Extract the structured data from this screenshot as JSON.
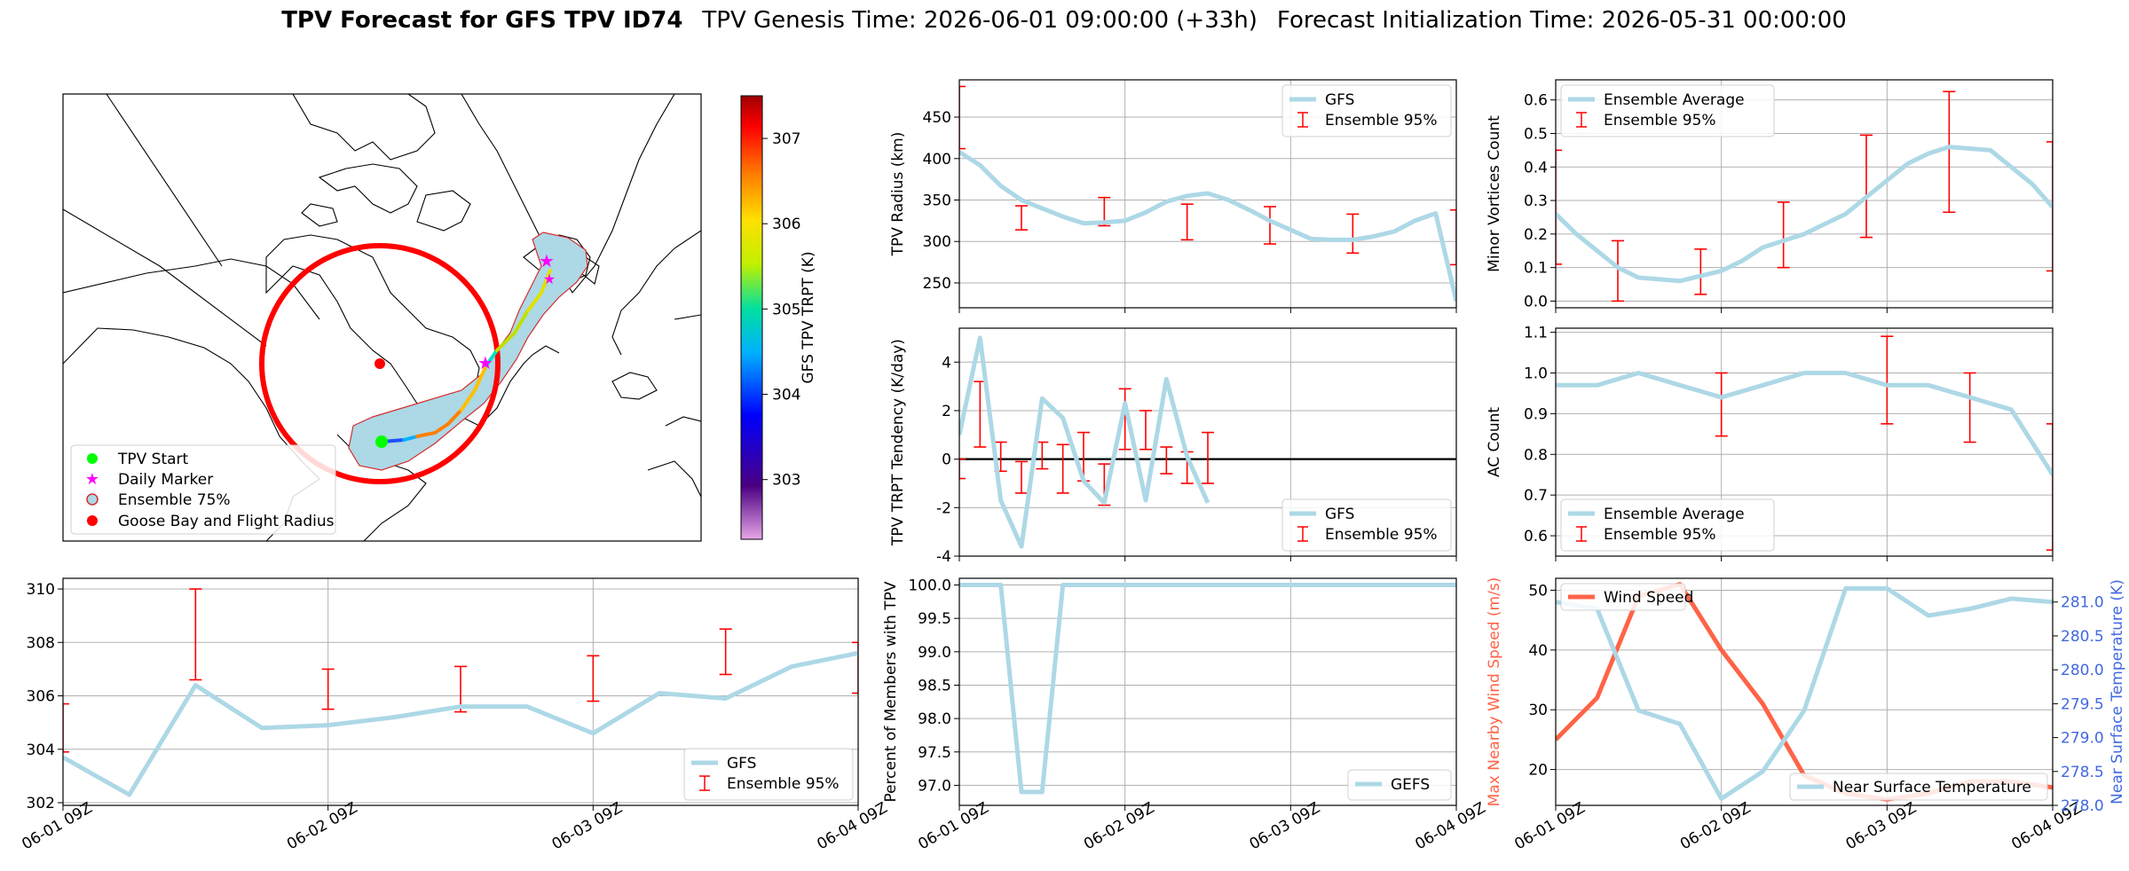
{
  "title": {
    "bold": "TPV Forecast for GFS TPV ID74",
    "genesis": "TPV Genesis Time: 2026-06-01 09:00:00 (+33h)",
    "init": "Forecast Initialization Time: 2026-05-31 00:00:00"
  },
  "colors": {
    "gfs_line": "#add8e6",
    "errorbar": "#ff0000",
    "wind": "#ff6347",
    "temp_axis": "#4169e1",
    "map_circle": "#ff0000",
    "ensemble_fill": "#add8e6"
  },
  "map": {
    "legend": [
      "TPV Start",
      "Daily Marker",
      "Ensemble 75%",
      "Goose Bay and Flight Radius"
    ],
    "colorbar": {
      "label": "GFS TPV TRPT (K)",
      "ticks": [
        "307",
        "306",
        "305",
        "304",
        "303"
      ],
      "range": [
        302.3,
        307.5
      ],
      "colormap": "gist_rainbow-like purple→red"
    }
  },
  "chart_data": [
    {
      "id": "radius",
      "type": "line",
      "ylabel": "TPV Radius (km)",
      "ylim": [
        220,
        495
      ],
      "yticks": [
        250,
        300,
        350,
        400,
        450
      ],
      "grid": true,
      "legend_position": "upper right",
      "legend": [
        "GFS",
        "Ensemble 95%"
      ],
      "x": [
        0,
        3,
        6,
        9,
        12,
        15,
        18,
        21,
        24,
        27,
        30,
        33,
        36,
        39,
        42,
        45,
        48,
        51,
        54,
        57,
        60,
        63,
        66,
        69,
        72
      ],
      "series": [
        {
          "name": "GFS",
          "values": [
            408,
            392,
            367,
            350,
            340,
            330,
            322,
            323,
            325,
            335,
            348,
            355,
            358,
            350,
            338,
            325,
            314,
            303,
            302,
            302,
            306,
            312,
            325,
            334,
            228
          ]
        }
      ],
      "errorbars": [
        {
          "x": 0,
          "low": 412,
          "high": 487
        },
        {
          "x": 9,
          "low": 314,
          "high": 343
        },
        {
          "x": 21,
          "low": 319,
          "high": 353
        },
        {
          "x": 33,
          "low": 302,
          "high": 345
        },
        {
          "x": 45,
          "low": 297,
          "high": 342
        },
        {
          "x": 57,
          "low": 286,
          "high": 333
        },
        {
          "x": 72,
          "low": 272,
          "high": 338
        }
      ]
    },
    {
      "id": "minor",
      "type": "line",
      "ylabel": "Minor Vortices Count",
      "ylim": [
        -0.02,
        0.66
      ],
      "yticks": [
        0.0,
        0.1,
        0.2,
        0.3,
        0.4,
        0.5,
        0.6
      ],
      "grid": true,
      "legend_position": "upper left",
      "legend": [
        "Ensemble Average",
        "Ensemble 95%"
      ],
      "x": [
        0,
        3,
        6,
        9,
        12,
        15,
        18,
        21,
        24,
        27,
        30,
        33,
        36,
        39,
        42,
        45,
        48,
        51,
        54,
        57,
        60,
        63,
        66,
        69,
        72
      ],
      "series": [
        {
          "name": "Ensemble Average",
          "values": [
            0.26,
            0.2,
            0.15,
            0.1,
            0.07,
            0.065,
            0.06,
            0.075,
            0.09,
            0.12,
            0.16,
            0.18,
            0.2,
            0.23,
            0.26,
            0.31,
            0.36,
            0.41,
            0.44,
            0.46,
            0.455,
            0.45,
            0.4,
            0.35,
            0.28
          ]
        }
      ],
      "errorbars": [
        {
          "x": 0,
          "low": 0.11,
          "high": 0.45
        },
        {
          "x": 9,
          "low": 0.0,
          "high": 0.18
        },
        {
          "x": 21,
          "low": 0.02,
          "high": 0.155
        },
        {
          "x": 33,
          "low": 0.1,
          "high": 0.295
        },
        {
          "x": 45,
          "low": 0.19,
          "high": 0.495
        },
        {
          "x": 57,
          "low": 0.265,
          "high": 0.625
        },
        {
          "x": 72,
          "low": 0.09,
          "high": 0.475
        }
      ]
    },
    {
      "id": "tendency",
      "type": "line",
      "ylabel": "TPV TRPT Tendency (K/day)",
      "ylim": [
        -4,
        5.4
      ],
      "yticks": [
        -4,
        -2,
        0,
        2,
        4
      ],
      "grid": true,
      "zero_line": true,
      "legend_position": "lower right",
      "legend": [
        "GFS",
        "Ensemble 95%"
      ],
      "x": [
        0,
        3,
        6,
        9,
        12,
        15,
        18,
        21,
        24,
        27,
        30,
        33,
        36,
        39,
        42,
        45,
        48,
        51,
        54,
        57,
        60,
        63,
        66,
        69,
        72
      ],
      "series": [
        {
          "name": "GFS",
          "values": [
            1.0,
            5.0,
            -1.7,
            -3.6,
            2.5,
            1.7,
            -0.9,
            -1.8,
            2.3,
            -1.7,
            3.3,
            0.1,
            -1.8,
            null,
            null,
            null,
            null,
            null,
            null,
            null,
            null,
            null,
            null,
            null,
            null
          ]
        }
      ],
      "errorbars": [
        {
          "x": 0,
          "low": -0.8,
          "high": 0.0
        },
        {
          "x": 3,
          "low": 0.5,
          "high": 3.2
        },
        {
          "x": 6,
          "low": -0.5,
          "high": 0.7
        },
        {
          "x": 9,
          "low": -1.4,
          "high": -0.1
        },
        {
          "x": 12,
          "low": -0.4,
          "high": 0.7
        },
        {
          "x": 15,
          "low": -1.4,
          "high": 0.6
        },
        {
          "x": 18,
          "low": -0.9,
          "high": 1.1
        },
        {
          "x": 21,
          "low": -1.9,
          "high": -0.2
        },
        {
          "x": 24,
          "low": 0.4,
          "high": 2.9
        },
        {
          "x": 27,
          "low": 0.4,
          "high": 2.0
        },
        {
          "x": 30,
          "low": -0.6,
          "high": 0.5
        },
        {
          "x": 33,
          "low": -1.0,
          "high": 0.3
        },
        {
          "x": 36,
          "low": -1.0,
          "high": 1.1
        }
      ]
    },
    {
      "id": "ac",
      "type": "line",
      "ylabel": "AC Count",
      "ylim": [
        0.55,
        1.11
      ],
      "yticks": [
        0.6,
        0.7,
        0.8,
        0.9,
        1.0,
        1.1
      ],
      "grid": true,
      "legend_position": "lower left",
      "legend": [
        "Ensemble Average",
        "Ensemble 95%"
      ],
      "x": [
        0,
        6,
        12,
        18,
        24,
        30,
        36,
        42,
        48,
        54,
        60,
        66,
        72
      ],
      "series": [
        {
          "name": "Ensemble Average",
          "values": [
            0.97,
            0.97,
            1.0,
            0.97,
            0.94,
            0.97,
            1.0,
            1.0,
            0.97,
            0.97,
            0.94,
            0.91,
            0.75
          ]
        }
      ],
      "errorbars": [
        {
          "x": 12,
          "low": 1.0,
          "high": 1.0
        },
        {
          "x": 24,
          "low": 0.845,
          "high": 1.0
        },
        {
          "x": 36,
          "low": 1.0,
          "high": 1.0
        },
        {
          "x": 48,
          "low": 0.875,
          "high": 1.09
        },
        {
          "x": 60,
          "low": 0.83,
          "high": 1.0
        },
        {
          "x": 72,
          "low": 0.565,
          "high": 0.875
        }
      ]
    },
    {
      "id": "trpt",
      "type": "line",
      "ylabel": "TPV TRPT (K)",
      "ylim": [
        301.9,
        310.4
      ],
      "yticks": [
        302,
        304,
        306,
        308,
        310
      ],
      "grid": true,
      "legend_position": "lower right",
      "legend": [
        "GFS",
        "Ensemble 95%"
      ],
      "x": [
        0,
        6,
        12,
        18,
        24,
        30,
        36,
        42,
        48,
        54,
        60,
        66,
        72
      ],
      "series": [
        {
          "name": "GFS",
          "values": [
            303.7,
            302.3,
            306.4,
            304.8,
            304.9,
            305.2,
            305.6,
            305.6,
            304.6,
            306.1,
            305.9,
            307.1,
            307.6
          ]
        }
      ],
      "errorbars": [
        {
          "x": 0,
          "low": 303.9,
          "high": 305.7
        },
        {
          "x": 12,
          "low": 306.6,
          "high": 310.0
        },
        {
          "x": 24,
          "low": 305.5,
          "high": 307.0
        },
        {
          "x": 36,
          "low": 305.4,
          "high": 307.1
        },
        {
          "x": 48,
          "low": 305.8,
          "high": 307.5
        },
        {
          "x": 60,
          "low": 306.8,
          "high": 308.5
        },
        {
          "x": 72,
          "low": 306.1,
          "high": 308.0
        }
      ]
    },
    {
      "id": "percent",
      "type": "line",
      "ylabel": "Percent of Members with TPV",
      "ylim": [
        96.7,
        100.1
      ],
      "yticks": [
        97.0,
        97.5,
        98.0,
        98.5,
        99.0,
        99.5,
        100.0
      ],
      "grid": true,
      "legend_position": "lower right",
      "legend": [
        "GEFS"
      ],
      "x": [
        0,
        3,
        6,
        9,
        12,
        15,
        18,
        21,
        24,
        27,
        30,
        33,
        36,
        39,
        42,
        45,
        48,
        51,
        54,
        57,
        60,
        63,
        66,
        69,
        72
      ],
      "series": [
        {
          "name": "GEFS",
          "values": [
            100,
            100,
            100,
            96.9,
            96.9,
            100,
            100,
            100,
            100,
            100,
            100,
            100,
            100,
            100,
            100,
            100,
            100,
            100,
            100,
            100,
            100,
            100,
            100,
            100,
            100
          ]
        }
      ]
    },
    {
      "id": "wind_temp",
      "type": "line",
      "ylabel": "Max Nearby Wind Speed (m/s)",
      "ylabel_right": "Near Surface Temperature (K)",
      "ylim": [
        14,
        52
      ],
      "yticks": [
        20,
        30,
        40,
        50
      ],
      "ylim_right": [
        278.0,
        281.35
      ],
      "yticks_right": [
        278.0,
        278.5,
        279.0,
        279.5,
        280.0,
        280.5,
        281.0
      ],
      "grid": true,
      "legend": [
        "Wind Speed",
        "Near Surface Temperature"
      ],
      "x": [
        0,
        6,
        12,
        18,
        24,
        30,
        36,
        42,
        48,
        54,
        60,
        66,
        72
      ],
      "series": [
        {
          "name": "Wind Speed",
          "axis": "left",
          "values": [
            25,
            32,
            49,
            51,
            40,
            31,
            19,
            16,
            15,
            16,
            18,
            18,
            17
          ]
        },
        {
          "name": "Near Surface Temperature",
          "axis": "right",
          "values": [
            281.0,
            280.9,
            279.4,
            279.2,
            278.1,
            278.5,
            279.4,
            281.2,
            281.2,
            280.8,
            280.9,
            281.05,
            281.0
          ]
        }
      ]
    }
  ],
  "xaxis": {
    "ticks": [
      "06-01 09Z",
      "06-02 09Z",
      "06-03 09Z",
      "06-04 09Z"
    ],
    "tick_hours": [
      0,
      24,
      48,
      72
    ],
    "range": [
      0,
      72
    ]
  }
}
